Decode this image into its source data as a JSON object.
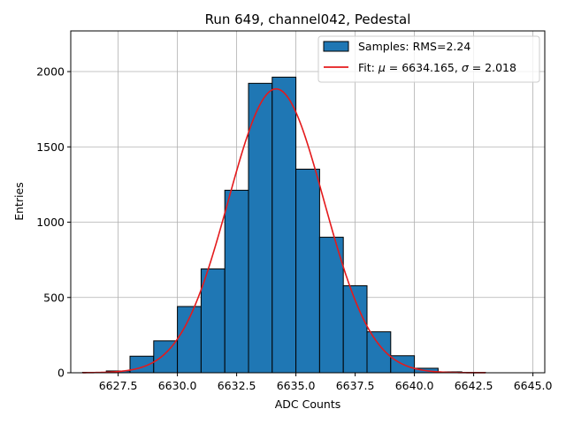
{
  "chart_data": {
    "type": "bar",
    "title": "Run 649, channel042, Pedestal",
    "xlabel": "ADC Counts",
    "ylabel": "Entries",
    "xlim": [
      6625.5,
      6645.5
    ],
    "ylim": [
      0,
      2270
    ],
    "grid": true,
    "legend_placement": "top-right",
    "x_ticks": [
      6627.5,
      6630.0,
      6632.5,
      6635.0,
      6637.5,
      6640.0,
      6642.5,
      6645.0
    ],
    "x_tick_labels": [
      "6627.5",
      "6630.0",
      "6632.5",
      "6635.0",
      "6637.5",
      "6640.0",
      "6642.5",
      "6645.0"
    ],
    "y_ticks": [
      0,
      500,
      1000,
      1500,
      2000
    ],
    "y_tick_labels": [
      "0",
      "500",
      "1000",
      "1500",
      "2000"
    ],
    "bar_color": "#1f77b4",
    "fit_color": "#e41a1c",
    "histogram": {
      "legend": "Samples: RMS=2.24",
      "bins": [
        {
          "left": 6626.0,
          "right": 6627.0,
          "count": 3
        },
        {
          "left": 6627.0,
          "right": 6628.0,
          "count": 12
        },
        {
          "left": 6628.0,
          "right": 6629.0,
          "count": 110
        },
        {
          "left": 6629.0,
          "right": 6630.0,
          "count": 212
        },
        {
          "left": 6630.0,
          "right": 6631.0,
          "count": 440
        },
        {
          "left": 6631.0,
          "right": 6632.0,
          "count": 690
        },
        {
          "left": 6632.0,
          "right": 6633.0,
          "count": 1212
        },
        {
          "left": 6633.0,
          "right": 6634.0,
          "count": 1922
        },
        {
          "left": 6634.0,
          "right": 6635.0,
          "count": 1963
        },
        {
          "left": 6635.0,
          "right": 6636.0,
          "count": 1352
        },
        {
          "left": 6636.0,
          "right": 6637.0,
          "count": 900
        },
        {
          "left": 6637.0,
          "right": 6638.0,
          "count": 578
        },
        {
          "left": 6638.0,
          "right": 6639.0,
          "count": 272
        },
        {
          "left": 6639.0,
          "right": 6640.0,
          "count": 113
        },
        {
          "left": 6640.0,
          "right": 6641.0,
          "count": 30
        },
        {
          "left": 6641.0,
          "right": 6642.0,
          "count": 6
        },
        {
          "left": 6642.0,
          "right": 6643.0,
          "count": 2
        }
      ]
    },
    "fit": {
      "legend_prefix": "Fit: ",
      "legend_mu": "μ",
      "legend_mid": " = 6634.165, ",
      "legend_sigma": "σ",
      "legend_suffix": " = 2.018",
      "mu": 6634.165,
      "sigma": 2.018,
      "amplitude": 1885,
      "x_range": [
        6626.0,
        6643.0
      ]
    }
  }
}
